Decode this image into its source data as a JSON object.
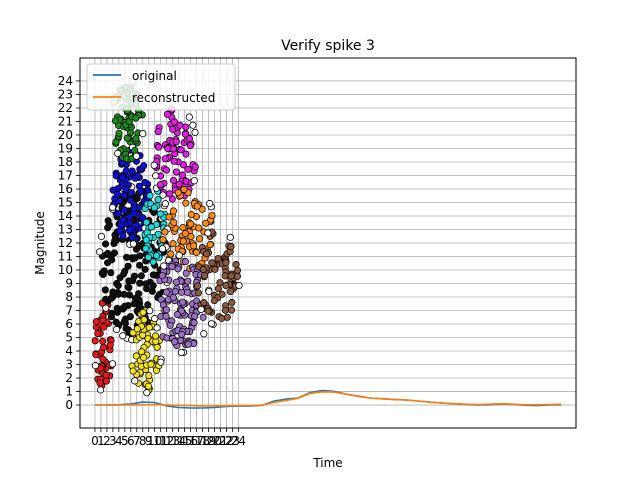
{
  "chart_data": {
    "type": "line",
    "title": "Verify spike 3",
    "xlabel": "Time",
    "ylabel": "Magnitude",
    "grid": true,
    "legend_position": "top-left",
    "x_ticks": [
      "0",
      "1",
      "2",
      "3",
      "4",
      "5",
      "6",
      "7",
      "8",
      "9",
      "10",
      "11",
      "12",
      "13",
      "14",
      "15",
      "16",
      "17",
      "18",
      "19",
      "20",
      "21",
      "22",
      "23",
      "24"
    ],
    "y_ticks": [
      "0",
      "1",
      "2",
      "3",
      "4",
      "5",
      "6",
      "7",
      "8",
      "9",
      "10",
      "11",
      "12",
      "13",
      "14",
      "15",
      "16",
      "17",
      "18",
      "19",
      "20",
      "21",
      "22",
      "23",
      "24"
    ],
    "xlim": [
      -2.5,
      80.5
    ],
    "ylim": [
      -1.7,
      25.7
    ],
    "series": [
      {
        "name": "original",
        "color": "#1f77b4",
        "x": [
          0,
          2,
          4,
          6,
          8,
          10,
          12,
          14,
          16,
          18,
          20,
          22,
          24,
          26,
          28,
          30,
          32,
          34,
          36,
          38,
          40,
          42,
          44,
          46,
          48,
          50,
          52,
          54,
          56,
          58,
          60,
          62,
          64,
          66,
          68,
          70,
          72,
          74,
          76,
          78
        ],
        "y": [
          0,
          0,
          0.02,
          0.08,
          0.22,
          0.18,
          -0.06,
          -0.18,
          -0.22,
          -0.22,
          -0.18,
          -0.1,
          -0.08,
          -0.08,
          -0.02,
          0.3,
          0.45,
          0.52,
          0.92,
          1.08,
          1.02,
          0.82,
          0.66,
          0.52,
          0.46,
          0.42,
          0.38,
          0.3,
          0.22,
          0.15,
          0.1,
          0.04,
          0,
          0.02,
          0.08,
          0.04,
          -0.02,
          -0.04,
          0,
          0.02
        ]
      },
      {
        "name": "reconstructed",
        "color": "#ff7f0e",
        "x": [
          0,
          2,
          4,
          6,
          8,
          10,
          12,
          14,
          16,
          18,
          20,
          22,
          24,
          26,
          28,
          30,
          32,
          34,
          36,
          38,
          40,
          42,
          44,
          46,
          48,
          50,
          52,
          54,
          56,
          58,
          60,
          62,
          64,
          66,
          68,
          70,
          72,
          74,
          76,
          78
        ],
        "y": [
          0,
          0,
          0,
          0,
          0.02,
          0.02,
          0,
          -0.02,
          -0.04,
          -0.06,
          -0.06,
          -0.05,
          -0.04,
          -0.04,
          0,
          0.2,
          0.34,
          0.5,
          0.86,
          0.98,
          0.96,
          0.8,
          0.64,
          0.52,
          0.46,
          0.42,
          0.38,
          0.3,
          0.22,
          0.15,
          0.1,
          0.06,
          0.04,
          0.06,
          0.1,
          0.06,
          0.02,
          0.02,
          0.04,
          0.06
        ]
      }
    ],
    "scatter_clusters": [
      {
        "color": "#e41a1c",
        "x_range": [
          0,
          3
        ],
        "y_range": [
          1,
          8
        ],
        "count": 50
      },
      {
        "color": "#111111",
        "x_range": [
          1,
          12
        ],
        "y_range": [
          5,
          16
        ],
        "count": 180
      },
      {
        "color": "#1010d0",
        "x_range": [
          3,
          9
        ],
        "y_range": [
          12,
          19
        ],
        "count": 90
      },
      {
        "color": "#1a8a1a",
        "x_range": [
          3,
          8
        ],
        "y_range": [
          18,
          24
        ],
        "count": 70
      },
      {
        "color": "#f0e020",
        "x_range": [
          6,
          11
        ],
        "y_range": [
          1,
          7
        ],
        "count": 60
      },
      {
        "color": "#20d8d8",
        "x_range": [
          8,
          12
        ],
        "y_range": [
          10,
          16
        ],
        "count": 40
      },
      {
        "color": "#e020e0",
        "x_range": [
          10,
          17
        ],
        "y_range": [
          15,
          22
        ],
        "count": 80
      },
      {
        "color": "#ff8c1a",
        "x_range": [
          11,
          20
        ],
        "y_range": [
          10,
          16
        ],
        "count": 70
      },
      {
        "color": "#9a70c0",
        "x_range": [
          10,
          19
        ],
        "y_range": [
          4,
          11
        ],
        "count": 110
      },
      {
        "color": "#8b5a40",
        "x_range": [
          17,
          24
        ],
        "y_range": [
          6,
          13
        ],
        "count": 70
      }
    ],
    "legend": [
      {
        "label": "original",
        "color": "#1f77b4"
      },
      {
        "label": "reconstructed",
        "color": "#ff7f0e"
      }
    ]
  }
}
